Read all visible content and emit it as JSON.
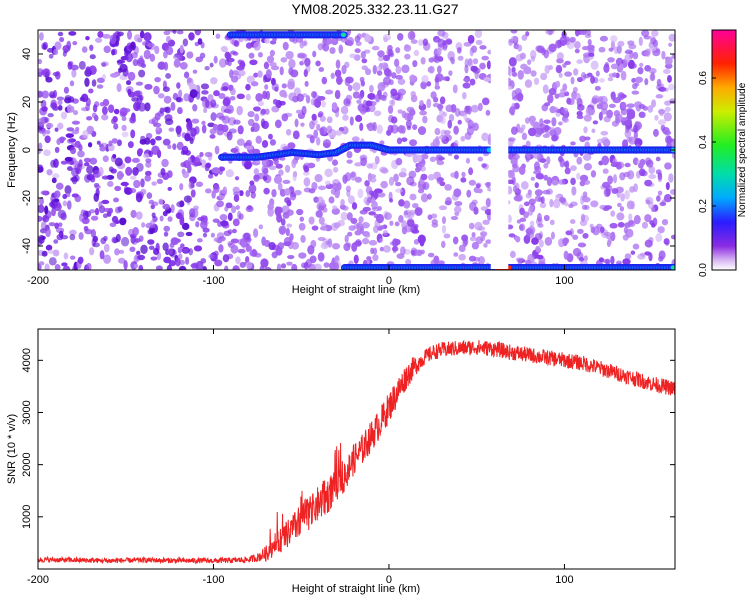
{
  "figure_title": "YM08.2025.332.23.11.G27",
  "colors": {
    "snr_line": "#ee2222",
    "ridge_core": "#22dd88",
    "background": "#ffffff"
  },
  "chart_data": [
    {
      "type": "heatmap",
      "xlabel": "Height of straight line (km)",
      "ylabel": "Frequency (Hz)",
      "xlim": [
        -200,
        163
      ],
      "ylim": [
        -50,
        50
      ],
      "xticks": [
        -200,
        -100,
        0,
        100
      ],
      "yticks": [
        -40,
        -20,
        0,
        20,
        40
      ],
      "colorbar": {
        "label": "Normalized spectral amplitude",
        "range": [
          0,
          0.75
        ],
        "ticks": [
          0.0,
          0.2,
          0.4,
          0.6
        ],
        "tick_labels": [
          "0.0",
          "0.2",
          "0.4",
          "0.6"
        ],
        "colormap": "rainbow (white-purple-blue-cyan-green-yellow-red-magenta)"
      },
      "ridges": [
        {
          "name": "main ridge",
          "points": [
            [
              -95,
              -3
            ],
            [
              -75,
              -3
            ],
            [
              -65,
              -2
            ],
            [
              -55,
              -1
            ],
            [
              -40,
              -2
            ],
            [
              -30,
              -1
            ],
            [
              -22,
              2
            ],
            [
              -10,
              2
            ],
            [
              0,
              0
            ],
            [
              50,
              0
            ],
            [
              60,
              0
            ],
            [
              70,
              0
            ],
            [
              163,
              0
            ]
          ],
          "gap": [
            58,
            68
          ]
        },
        {
          "name": "upper edge ridge",
          "points": [
            [
              -90,
              48
            ],
            [
              -25,
              48
            ]
          ]
        },
        {
          "name": "lower edge ridge",
          "points": [
            [
              -25,
              -49
            ],
            [
              163,
              -49
            ]
          ]
        }
      ],
      "gap_range_km": [
        58,
        68
      ]
    },
    {
      "type": "line",
      "xlabel": "Height of straight line (km)",
      "ylabel": "SNR (10 * v/v)",
      "xlim": [
        -200,
        163
      ],
      "ylim": [
        0,
        4600
      ],
      "xticks": [
        -200,
        -100,
        0,
        100
      ],
      "yticks": [
        1000,
        2000,
        3000,
        4000
      ],
      "series": [
        {
          "name": "SNR",
          "x": [
            -200,
            -180,
            -160,
            -140,
            -120,
            -100,
            -90,
            -80,
            -75,
            -70,
            -65,
            -60,
            -55,
            -50,
            -45,
            -40,
            -35,
            -30,
            -25,
            -20,
            -15,
            -10,
            -5,
            0,
            5,
            10,
            15,
            20,
            25,
            30,
            40,
            50,
            60,
            70,
            80,
            90,
            100,
            110,
            120,
            130,
            140,
            150,
            163
          ],
          "y": [
            180,
            170,
            160,
            170,
            160,
            160,
            165,
            180,
            220,
            300,
            450,
            600,
            750,
            950,
            1100,
            1250,
            1400,
            1600,
            1800,
            2100,
            2300,
            2550,
            2800,
            3100,
            3400,
            3700,
            3900,
            4050,
            4150,
            4200,
            4230,
            4250,
            4220,
            4150,
            4100,
            4050,
            4000,
            3950,
            3850,
            3750,
            3650,
            3550,
            3450
          ],
          "noise_amplitude": [
            50,
            50,
            50,
            50,
            50,
            50,
            55,
            60,
            80,
            150,
            200,
            250,
            300,
            300,
            350,
            350,
            350,
            300,
            300,
            300,
            300,
            300,
            300,
            300,
            280,
            250,
            200,
            150,
            150,
            150,
            150,
            150,
            150,
            150,
            150,
            150,
            150,
            150,
            150,
            150,
            150,
            150,
            150
          ]
        }
      ]
    }
  ]
}
